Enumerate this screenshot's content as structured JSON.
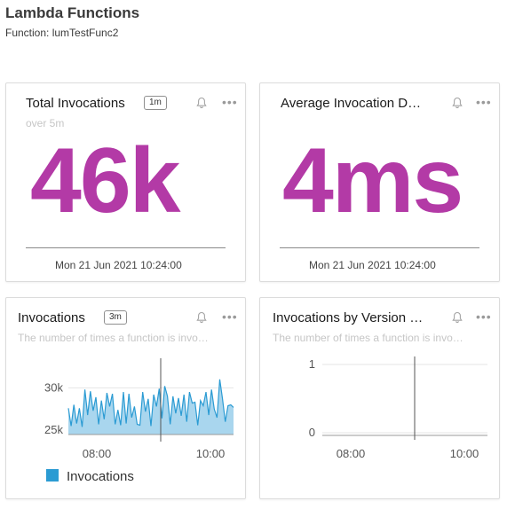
{
  "page": {
    "title": "Lambda Functions",
    "subtitle": "Function: lumTestFunc2"
  },
  "colors": {
    "accent": "#b33aa6",
    "series": "#2b9bd3",
    "series_fill": "#a9d6ee"
  },
  "cards": {
    "total": {
      "title": "Total Invocations",
      "badge": "1m",
      "subtitle": "over 5m",
      "value": "46k",
      "timestamp": "Mon 21 Jun 2021 10:24:00",
      "bell_icon": "bell-icon",
      "more_icon": "more-icon"
    },
    "duration": {
      "title": "Average Invocation D…",
      "value": "4ms",
      "timestamp": "Mon 21 Jun 2021 10:24:00",
      "bell_icon": "bell-icon",
      "more_icon": "more-icon"
    },
    "invocations": {
      "title": "Invocations",
      "badge": "3m",
      "description": "The number of times a function is invo…",
      "legend": "Invocations",
      "bell_icon": "bell-icon",
      "more_icon": "more-icon"
    },
    "by_version": {
      "title": "Invocations by Version …",
      "description": "The number of times a function is invo…",
      "bell_icon": "bell-icon",
      "more_icon": "more-icon"
    }
  },
  "chart_data": [
    {
      "type": "area",
      "title": "Invocations",
      "x_ticks": [
        "08:00",
        "10:00"
      ],
      "y_ticks": [
        "30k",
        "25k"
      ],
      "ylim": [
        24500,
        31500
      ],
      "grid": true,
      "legend_position": "bottom-left",
      "series": [
        {
          "name": "Invocations",
          "values": [
            27600,
            25500,
            28000,
            25800,
            27600,
            25400,
            29800,
            26800,
            29600,
            27300,
            28900,
            25700,
            28500,
            26300,
            29400,
            27800,
            29300,
            25700,
            27400,
            25600,
            29500,
            25800,
            29300,
            26500,
            27800,
            25700,
            25600,
            29500,
            27200,
            28700,
            25500,
            29200,
            27800,
            29900,
            26400,
            30200,
            29000,
            25700,
            29000,
            27000,
            28800,
            26700,
            29200,
            26000,
            29500,
            28200,
            28300,
            25600,
            28500,
            27900,
            29500,
            26800,
            29800,
            27500,
            26500,
            31000,
            28700,
            26000,
            27900,
            28000,
            27700
          ]
        }
      ]
    },
    {
      "type": "line",
      "title": "Invocations by Version …",
      "x_ticks": [
        "08:00",
        "10:00"
      ],
      "y_ticks": [
        "1",
        "0"
      ],
      "ylim": [
        0,
        1
      ],
      "grid": true,
      "series": []
    }
  ]
}
